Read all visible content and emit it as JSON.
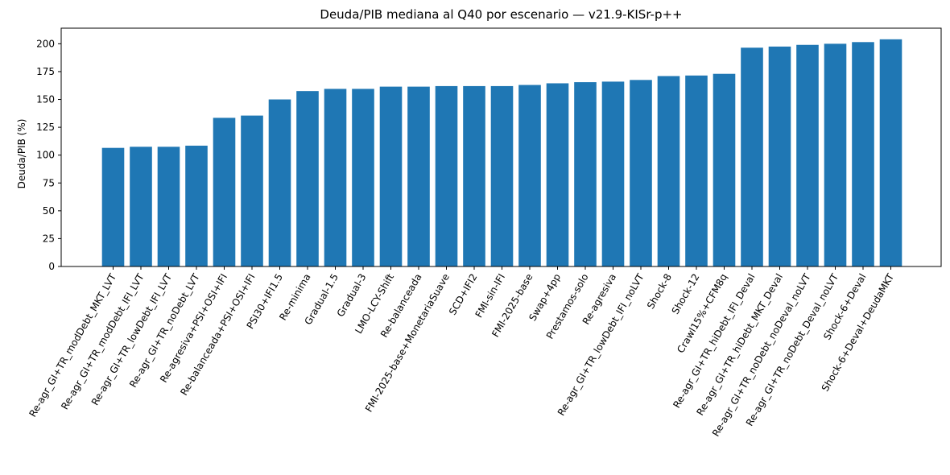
{
  "chart_data": {
    "type": "bar",
    "title": "Deuda/PIB mediana al Q40 por escenario — v21.9-KISr-p++",
    "xlabel": "",
    "ylabel": "Deuda/PIB (%)",
    "ylim": [
      0,
      214
    ],
    "yticks": [
      0,
      25,
      50,
      75,
      100,
      125,
      150,
      175,
      200
    ],
    "categories": [
      "Re-agr_GI+TR_modDebt_MKT_LVT",
      "Re-agr_GI+TR_modDebt_IFI_LVT",
      "Re-agr_GI+TR_lowDebt_IFI_LVT",
      "Re-agr_GI+TR_noDebt_LVT",
      "Re-agresiva+PSI+OSI+IFI",
      "Re-balanceada+PSI+OSI+IFI",
      "PSI30+IFI1.5",
      "Re-minima",
      "Gradual-1.5",
      "Gradual-3",
      "LMO-LCY-Shift",
      "Re-balanceada",
      "FMI-2025-base+MonetariaSuave",
      "SCD+IFI2",
      "FMI-sin-IFI",
      "FMI-2025-base",
      "Swap+4pp",
      "Prestamos-solo",
      "Re-agresiva",
      "Re-agr_GI+TR_lowDebt_IFI_noLVT",
      "Shock-8",
      "Shock-12",
      "Crawl15%+CFM8q",
      "Re-agr_GI+TR_hiDebt_IFI_Deval",
      "Re-agr_GI+TR_hiDebt_MKT_Deval",
      "Re-agr_GI+TR_noDebt_noDeval_noLVT",
      "Re-agr_GI+TR_noDebt_Deval_noLVT",
      "Shock-6+Deval",
      "Shock-6+Deval+DeudaMKT"
    ],
    "values": [
      106.5,
      107.5,
      107.5,
      108.5,
      133.5,
      135.5,
      150.0,
      157.5,
      159.5,
      159.5,
      161.5,
      161.5,
      162.0,
      162.0,
      162.0,
      163.0,
      164.5,
      165.5,
      166.0,
      167.5,
      171.0,
      171.5,
      173.0,
      196.5,
      197.5,
      199.0,
      200.0,
      201.5,
      204.0
    ],
    "bar_color": "#1f77b4",
    "grid": false
  }
}
